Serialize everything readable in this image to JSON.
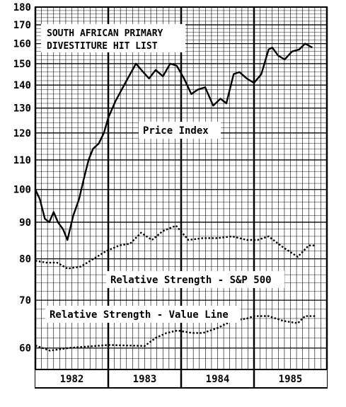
{
  "chart_data": {
    "type": "line",
    "title_lines": [
      "SOUTH AFRICAN PRIMARY",
      "DIVESTITURE HIT LIST"
    ],
    "y_scale": "log",
    "ylim": [
      56,
      180
    ],
    "y_ticks": [
      60,
      70,
      80,
      90,
      100,
      110,
      120,
      130,
      140,
      150,
      160,
      170,
      180
    ],
    "x_range": [
      1982,
      1986
    ],
    "x_labels": [
      "1982",
      "1983",
      "1984",
      "1985"
    ],
    "grid": true,
    "series": [
      {
        "name": "Price Index",
        "style": "solid",
        "points": [
          [
            1982.0,
            100
          ],
          [
            1982.06,
            97
          ],
          [
            1982.13,
            91
          ],
          [
            1982.19,
            90
          ],
          [
            1982.25,
            93
          ],
          [
            1982.31,
            90
          ],
          [
            1982.38,
            88
          ],
          [
            1982.44,
            85
          ],
          [
            1982.52,
            92
          ],
          [
            1982.6,
            97
          ],
          [
            1982.67,
            104
          ],
          [
            1982.73,
            110
          ],
          [
            1982.79,
            114
          ],
          [
            1982.87,
            116
          ],
          [
            1982.94,
            120
          ],
          [
            1983.0,
            126
          ],
          [
            1983.1,
            133
          ],
          [
            1983.25,
            142
          ],
          [
            1983.38,
            150
          ],
          [
            1983.48,
            146
          ],
          [
            1983.56,
            143
          ],
          [
            1983.65,
            147
          ],
          [
            1983.75,
            144
          ],
          [
            1983.85,
            150
          ],
          [
            1983.94,
            149
          ],
          [
            1984.04,
            143
          ],
          [
            1984.14,
            136
          ],
          [
            1984.23,
            138
          ],
          [
            1984.33,
            139
          ],
          [
            1984.44,
            131
          ],
          [
            1984.54,
            134
          ],
          [
            1984.62,
            132
          ],
          [
            1984.72,
            145
          ],
          [
            1984.8,
            146
          ],
          [
            1984.9,
            143
          ],
          [
            1985.0,
            141
          ],
          [
            1985.1,
            145
          ],
          [
            1985.2,
            157
          ],
          [
            1985.25,
            158
          ],
          [
            1985.33,
            154
          ],
          [
            1985.42,
            152
          ],
          [
            1985.52,
            156
          ],
          [
            1985.62,
            157
          ],
          [
            1985.7,
            160
          ],
          [
            1985.8,
            158
          ]
        ]
      },
      {
        "name": "Relative Strength - S&P 500",
        "style": "dotted",
        "points": [
          [
            1982.0,
            79.5
          ],
          [
            1982.15,
            79
          ],
          [
            1982.3,
            79
          ],
          [
            1982.44,
            77.5
          ],
          [
            1982.62,
            78
          ],
          [
            1982.8,
            80
          ],
          [
            1982.97,
            82
          ],
          [
            1983.15,
            83.5
          ],
          [
            1983.3,
            84
          ],
          [
            1983.45,
            87
          ],
          [
            1983.6,
            85
          ],
          [
            1983.75,
            87.5
          ],
          [
            1983.93,
            89
          ],
          [
            1984.1,
            85
          ],
          [
            1984.3,
            85.5
          ],
          [
            1984.5,
            85.5
          ],
          [
            1984.7,
            86
          ],
          [
            1984.9,
            85
          ],
          [
            1985.05,
            85
          ],
          [
            1985.2,
            86
          ],
          [
            1985.4,
            83
          ],
          [
            1985.6,
            80.5
          ],
          [
            1985.75,
            83.5
          ],
          [
            1985.85,
            83.5
          ]
        ]
      },
      {
        "name": "Relative Strength - Value Line",
        "style": "dotted",
        "points": [
          [
            1982.0,
            60.5
          ],
          [
            1982.2,
            59.5
          ],
          [
            1982.45,
            60
          ],
          [
            1982.62,
            60.2
          ],
          [
            1982.82,
            60.4
          ],
          [
            1983.0,
            60.6
          ],
          [
            1983.25,
            60.5
          ],
          [
            1983.5,
            60.4
          ],
          [
            1983.65,
            62
          ],
          [
            1983.8,
            63
          ],
          [
            1983.95,
            63.5
          ],
          [
            1984.15,
            63
          ],
          [
            1984.3,
            63
          ],
          [
            1984.5,
            64
          ],
          [
            1984.7,
            65.5
          ],
          [
            1984.9,
            66
          ],
          [
            1985.0,
            66.5
          ],
          [
            1985.2,
            66.5
          ],
          [
            1985.4,
            65.5
          ],
          [
            1985.6,
            65
          ],
          [
            1985.7,
            66.5
          ],
          [
            1985.85,
            66.5
          ]
        ]
      }
    ],
    "annotations": {
      "price_index": "Price Index",
      "rs_sp500": "Relative Strength - S&P 500",
      "rs_value_line": "Relative Strength - Value Line"
    }
  }
}
